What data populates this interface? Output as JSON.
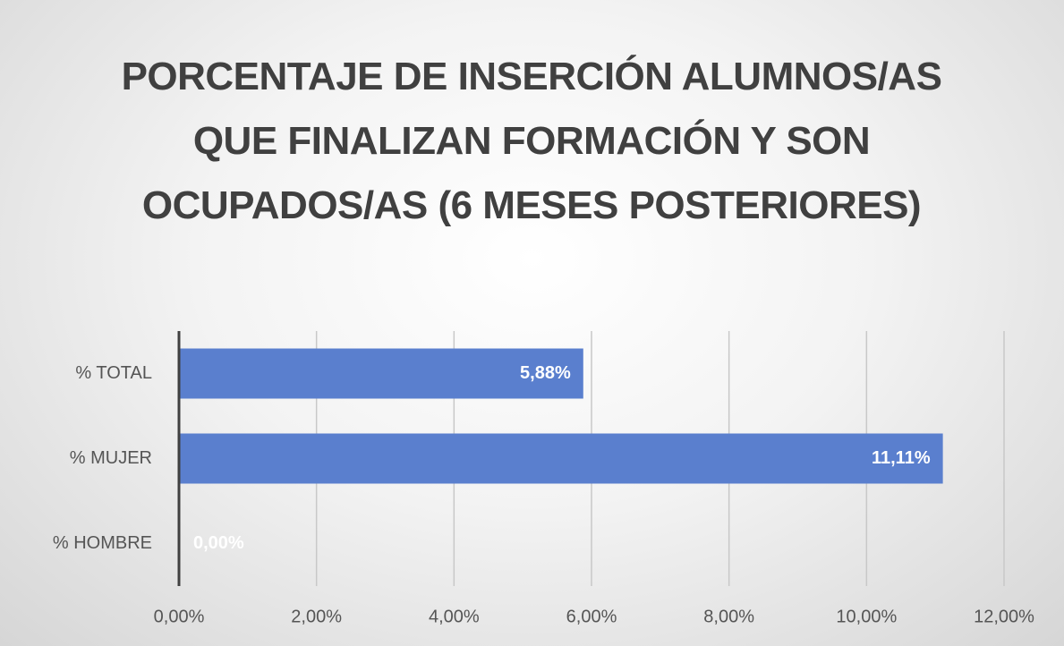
{
  "chart_data": {
    "type": "bar",
    "orientation": "horizontal",
    "title": "PORCENTAJE DE INSERCIÓN ALUMNOS/AS QUE FINALIZAN FORMACIÓN Y SON OCUPADOS/AS (6 MESES POSTERIORES)",
    "categories": [
      "% TOTAL",
      "% MUJER",
      "% HOMBRE"
    ],
    "values": [
      5.88,
      11.11,
      0
    ],
    "value_labels": [
      "5,88%",
      "11,11%",
      "0,00%"
    ],
    "color": "#5a7fce",
    "xlim": [
      0,
      12
    ],
    "xticks": [
      {
        "value": 0,
        "label": "0,00%"
      },
      {
        "value": 2,
        "label": "2,00%"
      },
      {
        "value": 4,
        "label": "4,00%"
      },
      {
        "value": 6,
        "label": "6,00%"
      },
      {
        "value": 8,
        "label": "8,00%"
      },
      {
        "value": 10,
        "label": "10,00%"
      },
      {
        "value": 12,
        "label": "12,00%"
      }
    ],
    "grid": true
  }
}
